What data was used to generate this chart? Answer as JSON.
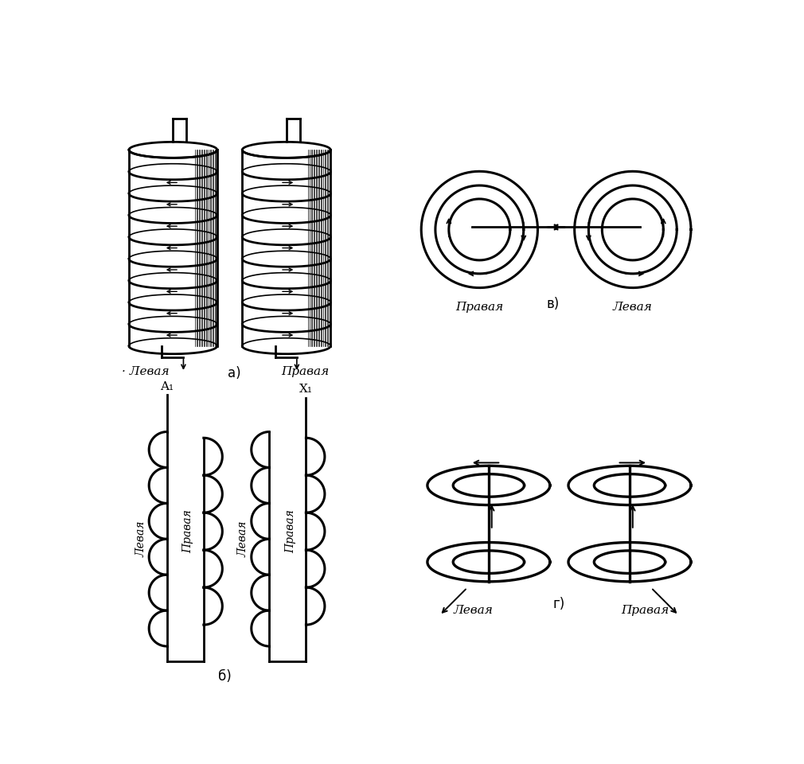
{
  "bg_color": "#ffffff",
  "line_color": "#000000",
  "label_a_left": "Левая",
  "label_a_right": "Правая",
  "label_a": "а)",
  "label_b": "б)",
  "label_v": "в)",
  "label_g": "г)",
  "label_v_left": "Правая",
  "label_v_right": "Левая",
  "label_g_left": "Левая",
  "label_g_right": "Правая",
  "label_A1": "A₁",
  "label_X1": "X₁",
  "label_levaya": "Левая",
  "label_pravaya": "Правая"
}
